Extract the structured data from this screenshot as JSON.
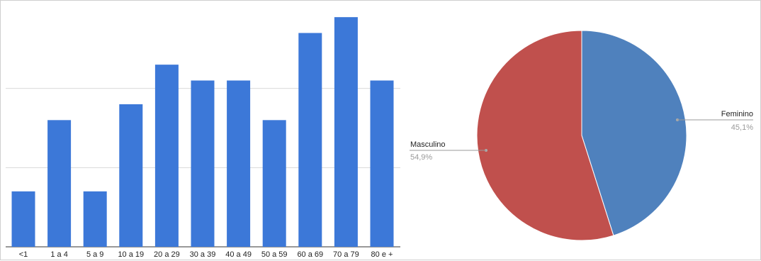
{
  "chart_data": [
    {
      "type": "bar",
      "categories": [
        "<1",
        "1 a 4",
        "5 a 9",
        "10 a 19",
        "20 a 29",
        "30 a 39",
        "40 a 49",
        "50 a 59",
        "60 a 69",
        "70 a 79",
        "80 e +"
      ],
      "values": [
        7,
        16,
        7,
        18,
        23,
        21,
        21,
        16,
        27,
        29,
        21
      ],
      "ylim": [
        0,
        30
      ],
      "grid": true,
      "colors": {
        "bar": "#3c78d8",
        "grid": "#d9d9d9",
        "axis": "#333333"
      }
    },
    {
      "type": "pie",
      "labels": [
        "Feminino",
        "Masculino"
      ],
      "values": [
        45.1,
        54.9
      ],
      "value_labels": [
        "45,1%",
        "54,9%"
      ],
      "colors": [
        "#4f81bd",
        "#c0504d"
      ],
      "start": "12 o'clock clockwise"
    }
  ]
}
